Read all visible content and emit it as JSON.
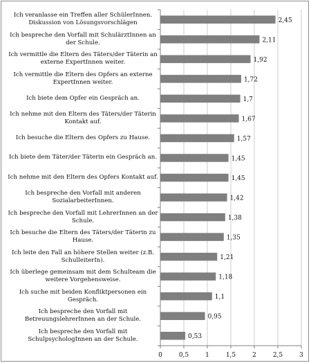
{
  "chart_data": {
    "type": "bar",
    "orientation": "horizontal",
    "categories": [
      "Ich veranlasse ein Treffen aller SchülerInnen. Diskussion von Lösungsvorschlägen",
      "Ich bespreche den Vorfall mit SchulärztInnen an der Schule.",
      "Ich vermittle die Eltern des Täters/der Täterin an externe ExpertInnen weiter.",
      "Ich vermittle die Eltern des Opfers an externe ExpertInnen weiter.",
      "Ich biete dem Opfer ein Gespräch an.",
      "Ich nehme mit den Eltern des Täters/der Täterin Kontakt auf.",
      "Ich besuche die Eltern des Opfers zu Hause.",
      "Ich biete dem Täter/der Täterin ein Gespräch an.",
      "Ich nehme mit den Eltern des Opfers Kontakt auf.",
      "Ich bespreche den Vorfall mit anderen SozialarbeiterInnen.",
      "Ich bespreche den Vorfall mit LehrerInnen an der Schule.",
      "Ich besuche die Eltern des Täters/der Täterin zu Hause.",
      "Ich leite den Fall an höhere Stellen weiter (z.B. SchulleiterIn).",
      "Ich überlege gemeinsam mit dem Schulteam die weitere Vorgehensweise.",
      "Ich suche mit beiden Konfliktpersonen ein Gespräch.",
      "Ich bespreche den Vorfall mit BetreuungslehrerInnen an der Schule.",
      "Ich bespreche den Vorfall mit SchulpsychologInnen an der Schule."
    ],
    "values": [
      2.45,
      2.11,
      1.92,
      1.72,
      1.7,
      1.67,
      1.57,
      1.45,
      1.45,
      1.42,
      1.38,
      1.35,
      1.21,
      1.18,
      1.1,
      0.95,
      0.53
    ],
    "value_labels": [
      "2,45",
      "2,11",
      "1,92",
      "1,72",
      "1,7",
      "1,67",
      "1,57",
      "1,45",
      "1,45",
      "1,42",
      "1,38",
      "1,35",
      "1,21",
      "1,18",
      "1,1",
      "0,95",
      "0,53"
    ],
    "xlim": [
      0,
      3
    ],
    "x_ticks": [
      0,
      0.5,
      1,
      1.5,
      2,
      2.5,
      3
    ],
    "x_tick_labels": [
      "0",
      "0,5",
      "1",
      "1,5",
      "2",
      "2,5",
      "3"
    ],
    "title": "",
    "xlabel": "",
    "ylabel": "",
    "grid": "vertical",
    "legend": "none",
    "colors": {
      "bar": "#7f7f7f",
      "grid": "#bfbfbf",
      "axis": "#808080",
      "text": "#111111"
    }
  }
}
